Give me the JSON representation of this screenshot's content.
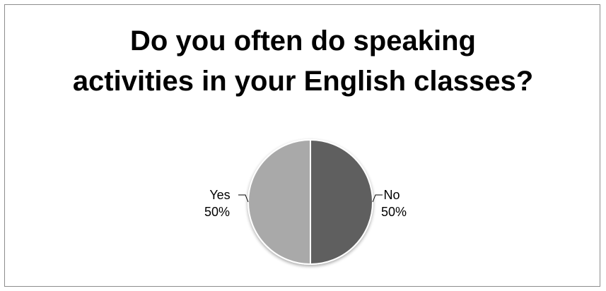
{
  "chart_data": {
    "type": "pie",
    "title": "Do you often do speaking activities in your English classes?",
    "title_lines": [
      "Do you often do speaking",
      "activities in your English classes?"
    ],
    "slices": [
      {
        "label": "No",
        "value": 50,
        "percent_label": "50%",
        "color": "#5f5f5f"
      },
      {
        "label": "Yes",
        "value": 50,
        "percent_label": "50%",
        "color": "#a9a9a9"
      }
    ],
    "legend": "none",
    "data_labels": "category-and-percent-outside"
  }
}
